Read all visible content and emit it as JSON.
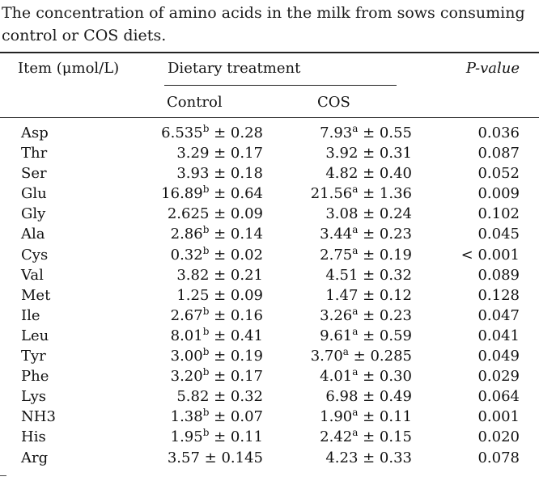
{
  "caption": "The concentration of amino acids in the milk from sows consuming control or COS diets.",
  "headers": {
    "item": "Item (μmol/L)",
    "dietary": "Dietary treatment",
    "pvalue": "P-value",
    "control": "Control",
    "cos": "COS"
  },
  "rows": [
    {
      "item": "Asp",
      "ctrl_val": "6.535",
      "ctrl_sup": "b",
      "ctrl_err": " ± 0.28",
      "cos_val": "7.93",
      "cos_sup": "a",
      "cos_err": " ± 0.55",
      "p": "0.036"
    },
    {
      "item": "Thr",
      "ctrl_val": "3.29",
      "ctrl_sup": "",
      "ctrl_err": " ± 0.17",
      "cos_val": "3.92",
      "cos_sup": "",
      "cos_err": " ± 0.31",
      "p": "0.087"
    },
    {
      "item": "Ser",
      "ctrl_val": "3.93",
      "ctrl_sup": "",
      "ctrl_err": " ± 0.18",
      "cos_val": "4.82",
      "cos_sup": "",
      "cos_err": " ± 0.40",
      "p": "0.052"
    },
    {
      "item": "Glu",
      "ctrl_val": "16.89",
      "ctrl_sup": "b",
      "ctrl_err": " ± 0.64",
      "cos_val": "21.56",
      "cos_sup": "a",
      "cos_err": " ± 1.36",
      "p": "0.009"
    },
    {
      "item": "Gly",
      "ctrl_val": "2.625",
      "ctrl_sup": "",
      "ctrl_err": " ± 0.09",
      "cos_val": "3.08",
      "cos_sup": "",
      "cos_err": " ± 0.24",
      "p": "0.102"
    },
    {
      "item": "Ala",
      "ctrl_val": "2.86",
      "ctrl_sup": "b",
      "ctrl_err": " ± 0.14",
      "cos_val": "3.44",
      "cos_sup": "a",
      "cos_err": " ± 0.23",
      "p": "0.045"
    },
    {
      "item": "Cys",
      "ctrl_val": "0.32",
      "ctrl_sup": "b",
      "ctrl_err": " ± 0.02",
      "cos_val": "2.75",
      "cos_sup": "a",
      "cos_err": " ± 0.19",
      "p": "< 0.001"
    },
    {
      "item": "Val",
      "ctrl_val": "3.82",
      "ctrl_sup": "",
      "ctrl_err": " ± 0.21",
      "cos_val": "4.51",
      "cos_sup": "",
      "cos_err": " ± 0.32",
      "p": "0.089"
    },
    {
      "item": "Met",
      "ctrl_val": "1.25",
      "ctrl_sup": "",
      "ctrl_err": " ± 0.09",
      "cos_val": "1.47",
      "cos_sup": "",
      "cos_err": " ± 0.12",
      "p": "0.128"
    },
    {
      "item": "Ile",
      "ctrl_val": "2.67",
      "ctrl_sup": "b",
      "ctrl_err": " ± 0.16",
      "cos_val": "3.26",
      "cos_sup": "a",
      "cos_err": " ± 0.23",
      "p": "0.047"
    },
    {
      "item": "Leu",
      "ctrl_val": "8.01",
      "ctrl_sup": "b",
      "ctrl_err": " ± 0.41",
      "cos_val": "9.61",
      "cos_sup": "a",
      "cos_err": " ± 0.59",
      "p": "0.041"
    },
    {
      "item": "Tyr",
      "ctrl_val": "3.00",
      "ctrl_sup": "b",
      "ctrl_err": " ± 0.19",
      "cos_val": "3.70",
      "cos_sup": "a",
      "cos_err": " ± 0.285",
      "p": "0.049"
    },
    {
      "item": "Phe",
      "ctrl_val": "3.20",
      "ctrl_sup": "b",
      "ctrl_err": " ± 0.17",
      "cos_val": "4.01",
      "cos_sup": "a",
      "cos_err": " ± 0.30",
      "p": "0.029"
    },
    {
      "item": "Lys",
      "ctrl_val": "5.82",
      "ctrl_sup": "",
      "ctrl_err": " ± 0.32",
      "cos_val": "6.98",
      "cos_sup": "",
      "cos_err": " ± 0.49",
      "p": "0.064"
    },
    {
      "item": "NH3",
      "ctrl_val": "1.38",
      "ctrl_sup": "b",
      "ctrl_err": " ± 0.07",
      "cos_val": "1.90",
      "cos_sup": "a",
      "cos_err": " ± 0.11",
      "p": "0.001"
    },
    {
      "item": "His",
      "ctrl_val": "1.95",
      "ctrl_sup": "b",
      "ctrl_err": " ± 0.11",
      "cos_val": "2.42",
      "cos_sup": "a",
      "cos_err": " ± 0.15",
      "p": "0.020"
    },
    {
      "item": "Arg",
      "ctrl_val": "3.57",
      "ctrl_sup": "",
      "ctrl_err": " ± 0.145",
      "cos_val": "4.23",
      "cos_sup": "",
      "cos_err": " ± 0.33",
      "p": "0.078"
    }
  ]
}
